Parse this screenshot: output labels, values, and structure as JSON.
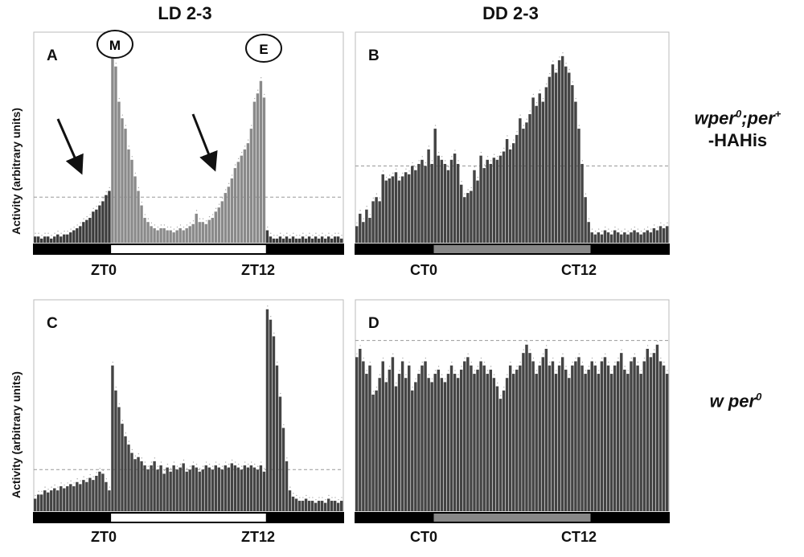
{
  "column_titles": [
    "LD 2-3",
    "DD 2-3"
  ],
  "genotype_labels": [
    {
      "line1_a": "wper",
      "line1_sup": "0",
      "line1_b": ";per",
      "line1_sup2": "+",
      "line2": "-HAHis"
    },
    {
      "line1_a": "w per",
      "line1_sup": "0"
    }
  ],
  "chart_data": [
    {
      "panel": "A",
      "type": "bar",
      "condition": "LD 2-3",
      "ylabel": "Activity (arbitrary units)",
      "x_ticks": [
        {
          "label": "ZT0",
          "bin": 24
        },
        {
          "label": "ZT12",
          "bin": 72
        }
      ],
      "light_bar": [
        "dark",
        "light",
        "dark"
      ],
      "light_bar_bins": [
        0,
        24,
        72,
        96
      ],
      "annotations": [
        "M",
        "E"
      ],
      "ylim": [
        0,
        100
      ],
      "reference_line": 22,
      "bin_shade": [
        [
          0,
          24,
          "dark"
        ],
        [
          24,
          72,
          "light"
        ],
        [
          72,
          96,
          "dark"
        ]
      ],
      "values": [
        3,
        3,
        2,
        3,
        3,
        2,
        3,
        4,
        3,
        4,
        4,
        5,
        6,
        7,
        8,
        10,
        11,
        12,
        15,
        16,
        18,
        20,
        23,
        25,
        100,
        85,
        68,
        60,
        55,
        45,
        40,
        32,
        25,
        18,
        12,
        10,
        8,
        7,
        6,
        7,
        7,
        6,
        6,
        5,
        6,
        7,
        6,
        7,
        8,
        9,
        14,
        10,
        10,
        9,
        11,
        12,
        15,
        17,
        20,
        24,
        27,
        31,
        36,
        39,
        42,
        45,
        48,
        55,
        68,
        72,
        78,
        70,
        6,
        3,
        2,
        2,
        3,
        2,
        3,
        2,
        3,
        2,
        2,
        3,
        2,
        3,
        2,
        3,
        2,
        3,
        2,
        3,
        2,
        3,
        3,
        2
      ]
    },
    {
      "panel": "B",
      "type": "bar",
      "condition": "DD 2-3",
      "x_ticks": [
        {
          "label": "CT0",
          "bin": 24
        },
        {
          "label": "CT12",
          "bin": 72
        }
      ],
      "light_bar": [
        "dark",
        "subjective-day",
        "dark"
      ],
      "light_bar_bins": [
        0,
        24,
        72,
        96
      ],
      "ylim": [
        0,
        100
      ],
      "reference_line": 37,
      "values": [
        8,
        14,
        10,
        16,
        12,
        20,
        22,
        20,
        33,
        30,
        31,
        32,
        34,
        30,
        32,
        34,
        33,
        37,
        35,
        38,
        40,
        37,
        45,
        38,
        55,
        42,
        40,
        38,
        35,
        40,
        43,
        38,
        28,
        22,
        24,
        25,
        35,
        30,
        42,
        36,
        40,
        38,
        41,
        40,
        42,
        44,
        50,
        45,
        48,
        52,
        60,
        55,
        58,
        62,
        70,
        66,
        72,
        68,
        75,
        80,
        86,
        82,
        88,
        90,
        85,
        82,
        76,
        68,
        55,
        38,
        22,
        10,
        5,
        4,
        5,
        4,
        6,
        5,
        4,
        6,
        5,
        4,
        5,
        4,
        5,
        6,
        5,
        4,
        5,
        6,
        5,
        7,
        6,
        8,
        7,
        8
      ]
    },
    {
      "panel": "C",
      "type": "bar",
      "condition": "LD 2-3",
      "ylabel": "Activity (arbitrary units)",
      "x_ticks": [
        {
          "label": "ZT0",
          "bin": 24
        },
        {
          "label": "ZT12",
          "bin": 72
        }
      ],
      "light_bar": [
        "dark",
        "light",
        "dark"
      ],
      "light_bar_bins": [
        0,
        24,
        72,
        96
      ],
      "ylim": [
        0,
        100
      ],
      "reference_line": 20,
      "values": [
        6,
        8,
        8,
        10,
        9,
        10,
        11,
        10,
        12,
        11,
        12,
        13,
        12,
        14,
        13,
        15,
        14,
        16,
        15,
        17,
        19,
        18,
        14,
        10,
        70,
        58,
        50,
        42,
        36,
        32,
        28,
        25,
        26,
        24,
        22,
        20,
        22,
        24,
        20,
        22,
        18,
        21,
        19,
        22,
        20,
        21,
        23,
        19,
        20,
        22,
        21,
        19,
        20,
        22,
        21,
        20,
        22,
        21,
        20,
        22,
        21,
        23,
        22,
        21,
        20,
        22,
        21,
        22,
        21,
        20,
        22,
        19,
        97,
        92,
        84,
        70,
        55,
        40,
        24,
        10,
        7,
        6,
        5,
        5,
        6,
        5,
        5,
        4,
        5,
        5,
        4,
        6,
        5,
        5,
        4,
        5
      ]
    },
    {
      "panel": "D",
      "type": "bar",
      "condition": "DD 2-3",
      "x_ticks": [
        {
          "label": "CT0",
          "bin": 24
        },
        {
          "label": "CT12",
          "bin": 72
        }
      ],
      "light_bar": [
        "dark",
        "subjective-day",
        "dark"
      ],
      "light_bar_bins": [
        0,
        24,
        72,
        96
      ],
      "ylim": [
        0,
        100
      ],
      "reference_line": 82,
      "values": [
        74,
        78,
        72,
        66,
        70,
        56,
        58,
        64,
        72,
        62,
        68,
        74,
        60,
        66,
        72,
        64,
        70,
        58,
        62,
        66,
        70,
        72,
        64,
        62,
        66,
        68,
        64,
        62,
        66,
        70,
        66,
        64,
        68,
        72,
        74,
        70,
        66,
        68,
        72,
        70,
        66,
        68,
        64,
        60,
        54,
        58,
        64,
        70,
        66,
        68,
        70,
        76,
        80,
        76,
        72,
        66,
        70,
        74,
        78,
        70,
        72,
        66,
        70,
        74,
        68,
        64,
        70,
        72,
        74,
        70,
        66,
        68,
        72,
        70,
        66,
        72,
        74,
        70,
        66,
        70,
        72,
        76,
        68,
        66,
        72,
        74,
        70,
        66,
        72,
        78,
        74,
        76,
        80,
        72,
        70,
        66
      ]
    }
  ]
}
